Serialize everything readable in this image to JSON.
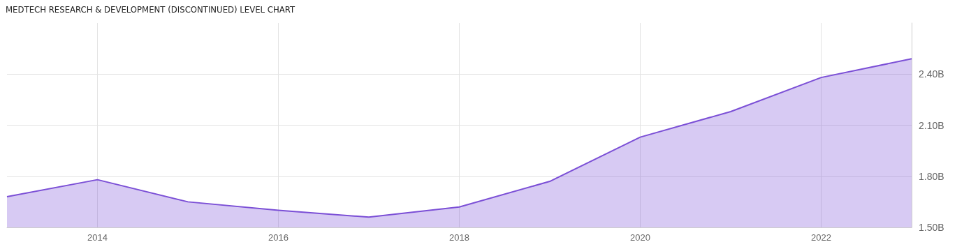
{
  "chart_data": {
    "type": "area",
    "title": "MEDTECH RESEARCH & DEVELOPMENT (DISCONTINUED) LEVEL CHART",
    "x": [
      2013,
      2014,
      2015,
      2016,
      2017,
      2018,
      2019,
      2020,
      2021,
      2022,
      2023
    ],
    "series": [
      {
        "color": "#7b4fd6",
        "values": [
          1.68,
          1.78,
          1.65,
          1.6,
          1.56,
          1.62,
          1.77,
          2.03,
          2.18,
          2.38,
          2.49
        ]
      }
    ],
    "xlim": [
      2013,
      2023
    ],
    "xticks": [
      2014,
      2016,
      2018,
      2020,
      2022
    ],
    "ylim": [
      1.5,
      2.7
    ],
    "yticks": [
      {
        "value": 1.5,
        "label": "1.50B"
      },
      {
        "value": 1.8,
        "label": "1.80B"
      },
      {
        "value": 2.1,
        "label": "2.10B"
      },
      {
        "value": 2.4,
        "label": "2.40B"
      }
    ],
    "grid": true
  }
}
